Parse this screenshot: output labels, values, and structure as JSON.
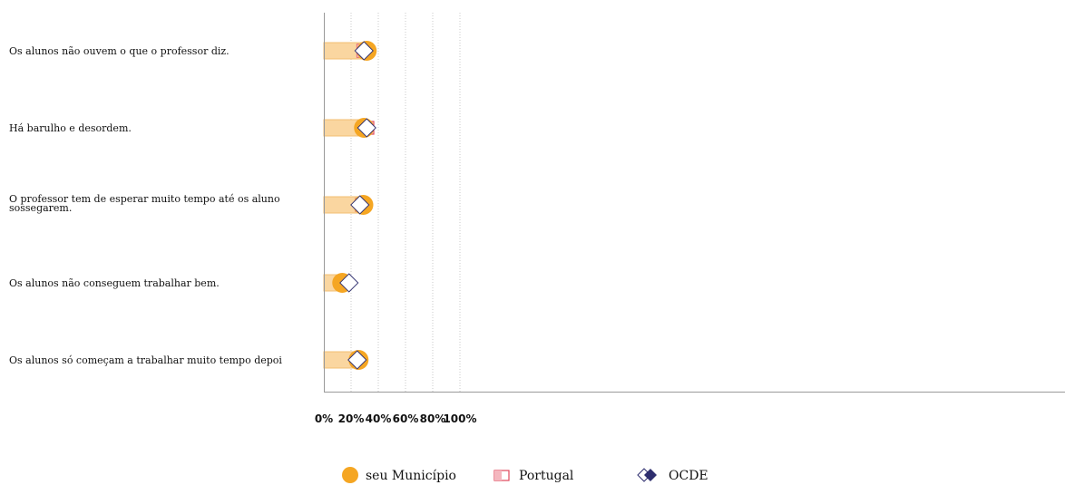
{
  "chart_data": {
    "type": "dot-bar",
    "categories": [
      [
        "Os alunos não ouvem o que o professor diz."
      ],
      [
        "Há barulho e desordem."
      ],
      [
        "O professor tem de esperar muito tempo até os aluno",
        "sossegarem."
      ],
      [
        "Os alunos não conseguem trabalhar bem."
      ],
      [
        "Os alunos só começam a trabalhar muito tempo depoi"
      ]
    ],
    "series": [
      {
        "name": "seu Município",
        "marker": "circle",
        "color": "#f5a623",
        "values": [
          31.5,
          29.5,
          29,
          13.5,
          25.5
        ]
      },
      {
        "name": "Portugal",
        "marker": "square",
        "color": "#e0455a",
        "values": [
          29,
          32,
          28,
          15.5,
          25
        ]
      },
      {
        "name": "OCDE",
        "marker": "diamond",
        "color": "#2e2e6e",
        "values": [
          29.5,
          31.5,
          26.5,
          18.5,
          24.5
        ]
      }
    ],
    "bar_series": "seu Município",
    "bar_color": "#fad6a0",
    "xlim": [
      0,
      109
    ],
    "xticks": [
      0,
      20,
      40,
      60,
      80,
      100
    ],
    "xtick_labels": [
      "0%",
      "20%",
      "40%",
      "60%",
      "80%",
      "100%"
    ],
    "grid": "vertical-dotted",
    "legend_position": "bottom"
  }
}
